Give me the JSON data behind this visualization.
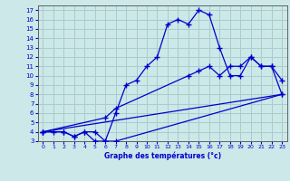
{
  "xlabel": "Graphe des températures (°c)",
  "bg_color": "#cce8e8",
  "grid_color": "#aacccc",
  "line_color": "#0000cc",
  "xlim": [
    -0.5,
    23.5
  ],
  "ylim": [
    3,
    17.5
  ],
  "xticks": [
    0,
    1,
    2,
    3,
    4,
    5,
    6,
    7,
    8,
    9,
    10,
    11,
    12,
    13,
    14,
    15,
    16,
    17,
    18,
    19,
    20,
    21,
    22,
    23
  ],
  "yticks": [
    3,
    4,
    5,
    6,
    7,
    8,
    9,
    10,
    11,
    12,
    13,
    14,
    15,
    16,
    17
  ],
  "line1_x": [
    0,
    1,
    2,
    3,
    4,
    5,
    6,
    7,
    8,
    9,
    10,
    11,
    12,
    13,
    14,
    15,
    16,
    17,
    18,
    19,
    20,
    21,
    22,
    23
  ],
  "line1_y": [
    4,
    4,
    4,
    3.5,
    4,
    3,
    3,
    6,
    9,
    9.5,
    11,
    12,
    15.5,
    16,
    15.5,
    17,
    16.5,
    13,
    10,
    10,
    12,
    11,
    11,
    9.5
  ],
  "line2_x": [
    0,
    2,
    3,
    4,
    5,
    6,
    7,
    23
  ],
  "line2_y": [
    4,
    4,
    3.5,
    4,
    4,
    3,
    3,
    8
  ],
  "line3_x": [
    0,
    6,
    7,
    14,
    15,
    16,
    17,
    18,
    19,
    20,
    21,
    22,
    23
  ],
  "line3_y": [
    4,
    5.5,
    6.5,
    10,
    10.5,
    11,
    10,
    11,
    11,
    12,
    11,
    11,
    8
  ],
  "line4_x": [
    0,
    23
  ],
  "line4_y": [
    4,
    8
  ]
}
